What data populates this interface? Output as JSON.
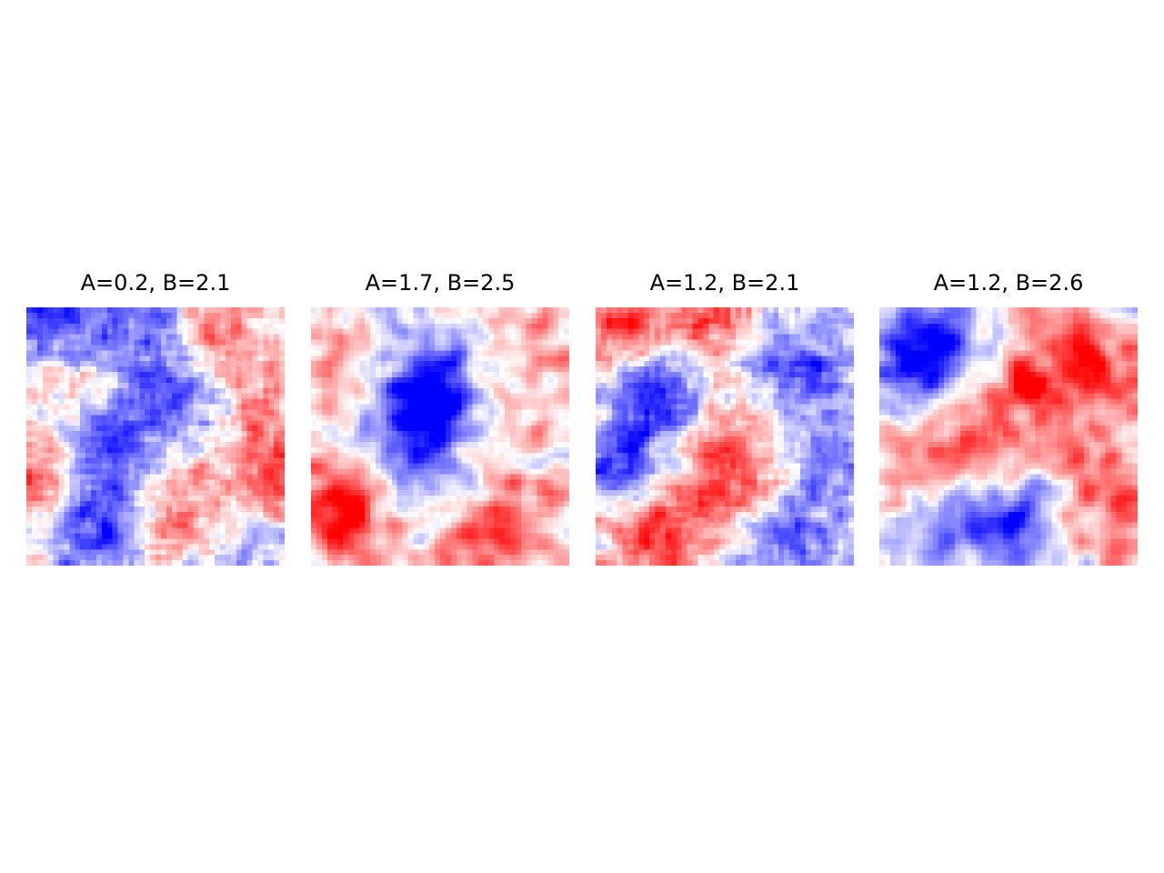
{
  "colors": {
    "negative": "#0000ff",
    "zero": "#ffffff",
    "positive": "#ff0000",
    "background": "#ffffff"
  },
  "chart_data": [
    {
      "type": "heatmap",
      "title": "A=0.2, B=2.1",
      "colormap": "bwr",
      "axes": "off",
      "grid": false,
      "n": 48,
      "seed": 11,
      "smoothness": 1,
      "blobs": [
        {
          "cx": 0.08,
          "cy": 0.06,
          "s": -0.8
        },
        {
          "cx": 0.43,
          "cy": 0.1,
          "s": -0.6
        },
        {
          "cx": 0.75,
          "cy": 0.08,
          "s": 0.5
        },
        {
          "cx": 0.55,
          "cy": 0.35,
          "s": -0.7
        },
        {
          "cx": 0.3,
          "cy": 0.55,
          "s": -0.8
        },
        {
          "cx": 0.25,
          "cy": 0.85,
          "s": -0.9
        },
        {
          "cx": 0.05,
          "cy": 0.65,
          "s": 0.7
        },
        {
          "cx": 0.6,
          "cy": 0.78,
          "s": 0.6
        },
        {
          "cx": 0.9,
          "cy": 0.4,
          "s": 0.4
        },
        {
          "cx": 0.98,
          "cy": 0.68,
          "s": 0.7
        },
        {
          "cx": 0.85,
          "cy": 0.9,
          "s": -0.4
        },
        {
          "cx": 0.15,
          "cy": 0.3,
          "s": 0.3
        }
      ]
    },
    {
      "type": "heatmap",
      "title": "A=1.7, B=2.5",
      "colormap": "bwr",
      "axes": "off",
      "grid": false,
      "n": 48,
      "seed": 23,
      "smoothness": 2,
      "blobs": [
        {
          "cx": 0.42,
          "cy": 0.42,
          "s": -0.95
        },
        {
          "cx": 0.5,
          "cy": 0.28,
          "s": -0.6
        },
        {
          "cx": 0.45,
          "cy": 0.72,
          "s": -0.4
        },
        {
          "cx": 0.12,
          "cy": 0.8,
          "s": 0.95
        },
        {
          "cx": 0.75,
          "cy": 0.82,
          "s": 0.7
        },
        {
          "cx": 0.5,
          "cy": 0.95,
          "s": 0.5
        },
        {
          "cx": 0.9,
          "cy": 0.15,
          "s": 0.4
        },
        {
          "cx": 0.15,
          "cy": 0.15,
          "s": 0.35
        },
        {
          "cx": 0.88,
          "cy": 0.45,
          "s": 0.2
        }
      ]
    },
    {
      "type": "heatmap",
      "title": "A=1.2, B=2.1",
      "colormap": "bwr",
      "axes": "off",
      "grid": false,
      "n": 48,
      "seed": 37,
      "smoothness": 1,
      "blobs": [
        {
          "cx": 0.12,
          "cy": 0.05,
          "s": 0.8
        },
        {
          "cx": 0.45,
          "cy": 0.05,
          "s": 0.6
        },
        {
          "cx": 0.25,
          "cy": 0.32,
          "s": -0.9
        },
        {
          "cx": 0.75,
          "cy": 0.22,
          "s": -0.6
        },
        {
          "cx": 0.1,
          "cy": 0.6,
          "s": -0.7
        },
        {
          "cx": 0.5,
          "cy": 0.55,
          "s": 0.7
        },
        {
          "cx": 0.25,
          "cy": 0.88,
          "s": 0.9
        },
        {
          "cx": 0.75,
          "cy": 0.88,
          "s": -0.8
        },
        {
          "cx": 0.92,
          "cy": 0.6,
          "s": -0.5
        },
        {
          "cx": 0.6,
          "cy": 0.75,
          "s": 0.5
        },
        {
          "cx": 0.95,
          "cy": 0.3,
          "s": -0.3
        }
      ]
    },
    {
      "type": "heatmap",
      "title": "A=1.2, B=2.6",
      "colormap": "bwr",
      "axes": "off",
      "grid": false,
      "n": 48,
      "seed": 51,
      "smoothness": 2,
      "blobs": [
        {
          "cx": 0.2,
          "cy": 0.15,
          "s": -0.9
        },
        {
          "cx": 0.05,
          "cy": 0.28,
          "s": -0.5
        },
        {
          "cx": 0.55,
          "cy": 0.35,
          "s": 0.7
        },
        {
          "cx": 0.82,
          "cy": 0.18,
          "s": 0.95
        },
        {
          "cx": 0.2,
          "cy": 0.55,
          "s": 0.6
        },
        {
          "cx": 0.85,
          "cy": 0.65,
          "s": 0.7
        },
        {
          "cx": 0.55,
          "cy": 0.82,
          "s": -0.95
        },
        {
          "cx": 0.25,
          "cy": 0.88,
          "s": -0.5
        },
        {
          "cx": 0.95,
          "cy": 0.9,
          "s": 0.4
        },
        {
          "cx": 0.45,
          "cy": 0.6,
          "s": 0.3
        }
      ]
    }
  ]
}
